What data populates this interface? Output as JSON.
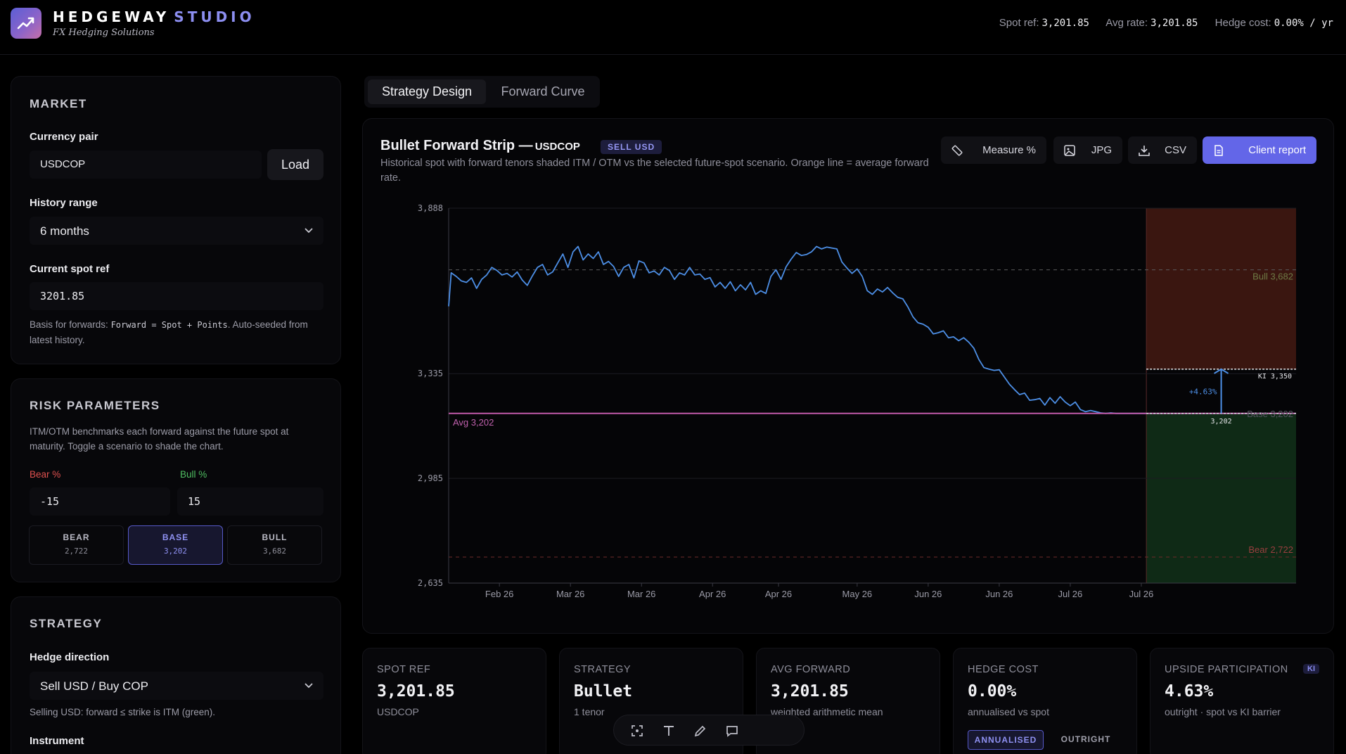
{
  "header": {
    "brand_main": "HEDGEWAY",
    "brand_accent": "STUDIO",
    "tagline": "FX Hedging Solutions",
    "spot_ref_label": "Spot ref:",
    "spot_ref_value": "3,201.85",
    "avg_rate_label": "Avg rate:",
    "avg_rate_value": "3,201.85",
    "hedge_cost_label": "Hedge cost:",
    "hedge_cost_value": "0.00% / yr"
  },
  "market": {
    "title": "MARKET",
    "currency_pair_label": "Currency pair",
    "currency_pair_value": "USDCOP",
    "load_button": "Load",
    "history_range_label": "History range",
    "history_range_value": "6 months",
    "spot_label": "Current spot ref",
    "spot_value": "3201.85",
    "hint_pre": "Basis for forwards:",
    "hint_code": "Forward = Spot + Points",
    "hint_post": ". Auto-seeded from latest history."
  },
  "risk": {
    "title": "RISK PARAMETERS",
    "hint": "ITM/OTM benchmarks each forward against the future spot at maturity. Toggle a scenario to shade the chart.",
    "bear_label": "Bear %",
    "bear_value": "-15",
    "bull_label": "Bull %",
    "bull_value": "15",
    "scenarios": [
      {
        "name": "BEAR",
        "value": "2,722"
      },
      {
        "name": "BASE",
        "value": "3,202"
      },
      {
        "name": "BULL",
        "value": "3,682"
      }
    ],
    "colors": {
      "bear_label": "#e0514f",
      "bull_label": "#4fbf62"
    }
  },
  "strategy": {
    "title": "STRATEGY",
    "direction_label": "Hedge direction",
    "direction_value": "Sell USD / Buy COP",
    "direction_hint": "Selling USD: forward ≤ strike is ITM (green).",
    "instrument_label": "Instrument"
  },
  "tabs": [
    "Strategy Design",
    "Forward Curve"
  ],
  "chart_card": {
    "title": "Bullet Forward Strip —",
    "pair": "USDCOP",
    "badge": "SELL USD",
    "subtitle": "Historical spot with forward tenors shaded ITM / OTM vs the selected future-spot scenario. Orange line = average forward rate.",
    "buttons": {
      "measure": "Measure %",
      "jpg": "JPG",
      "csv": "CSV",
      "report": "Client report"
    }
  },
  "chart_data": {
    "type": "line",
    "ylim": [
      2635,
      3888
    ],
    "yticks": [
      "3,888",
      "3,335",
      "2,985",
      "2,635"
    ],
    "ytick_values": [
      3888,
      3335,
      2985,
      2635
    ],
    "xticks": [
      "Feb 26",
      "Mar 26",
      "Mar 26",
      "Apr 26",
      "Apr 26",
      "May 26",
      "Jun 26",
      "Jun 26",
      "Jul 26",
      "Jul 26"
    ],
    "xtick_days": [
      20,
      48,
      76,
      104,
      130,
      161,
      189,
      217,
      245,
      273
    ],
    "x_end_day": 275,
    "forward_end_day": 334,
    "series": [
      {
        "x": [
          0,
          1,
          3,
          5,
          7,
          9,
          11,
          13,
          15,
          17,
          19,
          21,
          23,
          25,
          27,
          29,
          31,
          33,
          35,
          37,
          39,
          41,
          43,
          45,
          47,
          49,
          51,
          53,
          55,
          57,
          59,
          61,
          63,
          65,
          67,
          69,
          71,
          73,
          75,
          77,
          79,
          81,
          83,
          85,
          87,
          89,
          91,
          93,
          95,
          97,
          99,
          101,
          103,
          105,
          107,
          109,
          111,
          113,
          115,
          117,
          119,
          121,
          123,
          125,
          127,
          129,
          131,
          133,
          135,
          137,
          139,
          141,
          143,
          145,
          147,
          149,
          151,
          153,
          155,
          157,
          159,
          161,
          163,
          165,
          167,
          169,
          171,
          173,
          175,
          177,
          179,
          181,
          183,
          185,
          187,
          189,
          191,
          193,
          195,
          197,
          199,
          201,
          203,
          205,
          207,
          209,
          211,
          213,
          215,
          217,
          219,
          221,
          223,
          225,
          227,
          229,
          231,
          233,
          235,
          237,
          239,
          241,
          243,
          245,
          247,
          249,
          251,
          253,
          255,
          257,
          259,
          261,
          263,
          265,
          267,
          269,
          271,
          273,
          275
        ],
        "values": [
          3560,
          3672,
          3660,
          3645,
          3640,
          3655,
          3620,
          3650,
          3665,
          3690,
          3680,
          3665,
          3670,
          3658,
          3675,
          3648,
          3630,
          3662,
          3690,
          3700,
          3665,
          3675,
          3705,
          3735,
          3690,
          3742,
          3760,
          3715,
          3735,
          3720,
          3742,
          3700,
          3710,
          3693,
          3660,
          3690,
          3700,
          3655,
          3712,
          3705,
          3672,
          3678,
          3665,
          3690,
          3680,
          3650,
          3672,
          3665,
          3690,
          3665,
          3668,
          3650,
          3656,
          3625,
          3640,
          3620,
          3642,
          3612,
          3632,
          3615,
          3640,
          3600,
          3612,
          3603,
          3660,
          3682,
          3650,
          3692,
          3718,
          3740,
          3730,
          3733,
          3742,
          3760,
          3752,
          3758,
          3755,
          3752,
          3708,
          3688,
          3670,
          3685,
          3660,
          3612,
          3600,
          3618,
          3608,
          3623,
          3605,
          3590,
          3585,
          3558,
          3525,
          3505,
          3500,
          3490,
          3468,
          3472,
          3478,
          3455,
          3458,
          3445,
          3455,
          3440,
          3420,
          3382,
          3355,
          3350,
          3346,
          3348,
          3324,
          3300,
          3282,
          3265,
          3270,
          3246,
          3248,
          3252,
          3230,
          3255,
          3236,
          3258,
          3240,
          3228,
          3240,
          3215,
          3208,
          3212,
          3208,
          3204,
          3202,
          3204,
          3202,
          3202,
          3202,
          3202,
          3202,
          3202,
          3202
        ]
      }
    ],
    "avg_line": {
      "value": 3202,
      "label": "Avg 3,202"
    },
    "scenario_lines": [
      {
        "label": "Bull 3,682",
        "value": 3682
      },
      {
        "label": "Base 3,202",
        "value": 3202
      },
      {
        "label": "Bear 2,722",
        "value": 2722
      }
    ],
    "ki_line": {
      "label": "KI 3,350",
      "value": 3350
    },
    "measure": {
      "label": "+4.63%",
      "from": 3202,
      "to": 3350,
      "end_label": "3,202"
    },
    "colors": {
      "line": "#4d8fe6",
      "avg": "#c05aa8",
      "otm": "#3a1610",
      "itm": "#0f2a16",
      "bull": "#5b5b5b",
      "bear": "#6f2b2b"
    }
  },
  "stats": [
    {
      "label": "SPOT REF",
      "value": "3,201.85",
      "sub": "USDCOP"
    },
    {
      "label": "STRATEGY",
      "value": "Bullet",
      "sub": "1 tenor"
    },
    {
      "label": "AVG FORWARD",
      "value": "3,201.85",
      "sub": "weighted arithmetic mean"
    },
    {
      "label": "HEDGE COST",
      "value": "0.00%",
      "sub": "annualised vs spot",
      "seg_on": "ANNUALISED",
      "seg_off": "OUTRIGHT"
    },
    {
      "label": "UPSIDE PARTICIPATION",
      "value": "4.63%",
      "sub": "outright · spot vs KI barrier",
      "badge": "KI"
    }
  ]
}
